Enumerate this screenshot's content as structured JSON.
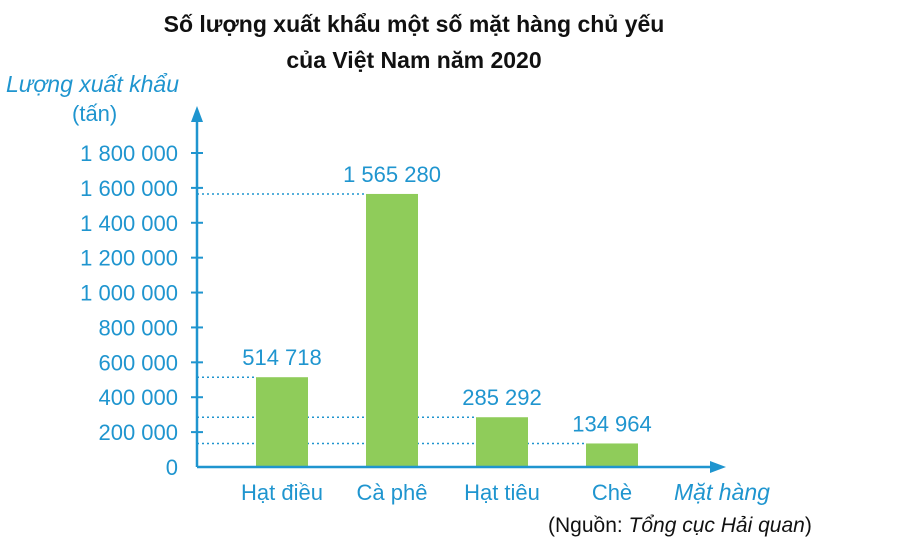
{
  "chart_data": {
    "type": "bar",
    "title_lines": [
      "Số lượng xuất khẩu một số mặt hàng chủ yếu",
      "của Việt Nam năm 2020"
    ],
    "ylabel": "Lượng xuất khẩu",
    "yunit": "(tấn)",
    "xlabel": "Mặt hàng",
    "categories": [
      "Hạt điều",
      "Cà phê",
      "Hạt tiêu",
      "Chè"
    ],
    "values": [
      514718,
      1565280,
      285292,
      134964
    ],
    "value_labels": [
      "514 718",
      "1 565 280",
      "285 292",
      "134 964"
    ],
    "ylim": [
      0,
      1800000
    ],
    "yticks": [
      0,
      200000,
      400000,
      600000,
      800000,
      1000000,
      1200000,
      1400000,
      1600000,
      1800000
    ],
    "ytick_labels": [
      "0",
      "200 000",
      "400 000",
      "600 000",
      "800 000",
      "1 000 000",
      "1 200 000",
      "1 400 000",
      "1 600 000",
      "1 800 000"
    ],
    "bar_color": "#8fcc5a",
    "axis_color": "#1f95cf",
    "guide_lines": "dotted",
    "source_prefix": "(Nguồn: ",
    "source_name": "Tổng cục Hải quan",
    "source_suffix": ")"
  }
}
